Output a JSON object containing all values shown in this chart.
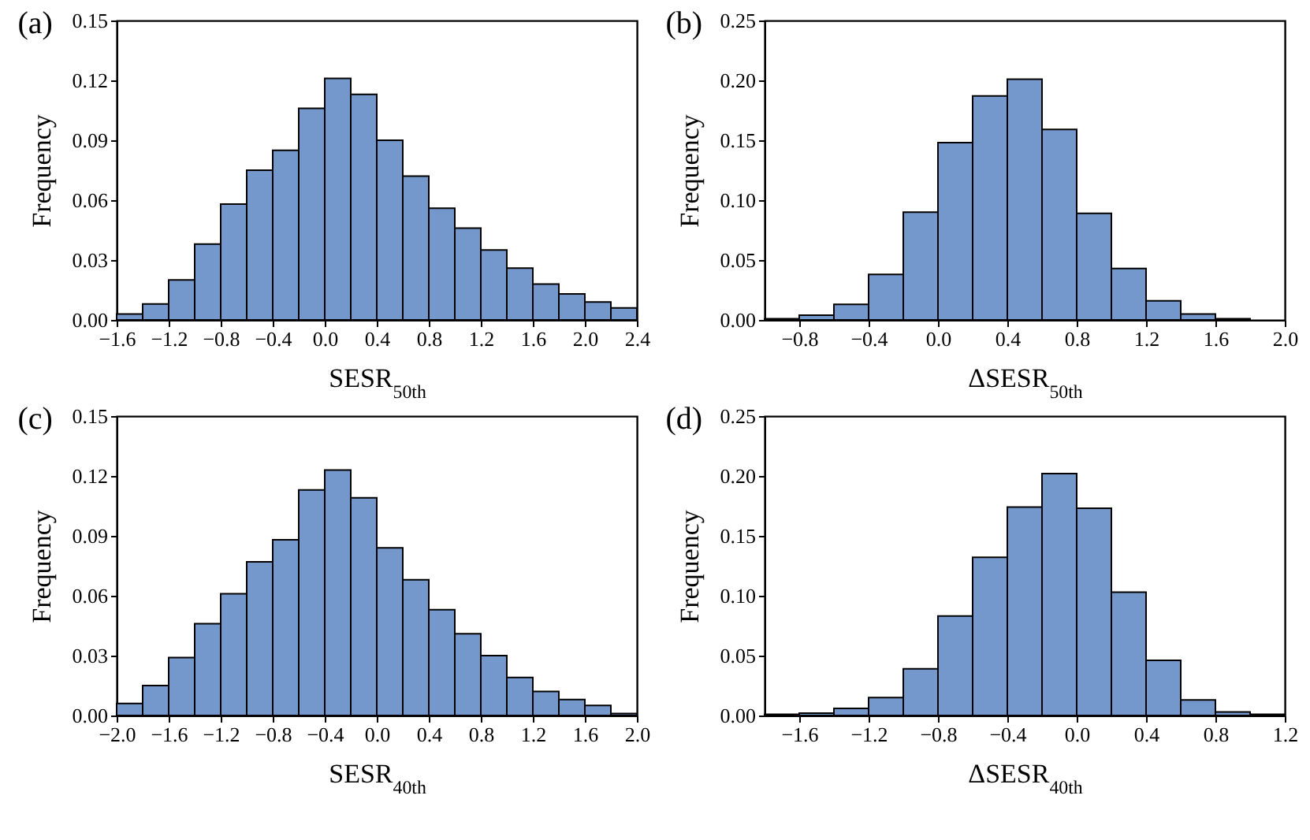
{
  "chart_data": [
    {
      "type": "histogram",
      "title": "(a)",
      "xlabel": "SESR$_{50th}$",
      "ylabel": "Frequency",
      "color": "#7498cb",
      "bins": [
        -1.6,
        -1.4,
        -1.2,
        -1.0,
        -0.8,
        -0.6,
        -0.4,
        -0.2,
        0.0,
        0.2,
        0.4,
        0.6,
        0.8,
        1.0,
        1.2,
        1.4,
        1.6,
        1.8,
        2.0,
        2.2,
        2.4
      ],
      "values": [
        0.003,
        0.008,
        0.02,
        0.038,
        0.058,
        0.075,
        0.085,
        0.106,
        0.121,
        0.113,
        0.09,
        0.072,
        0.056,
        0.046,
        0.035,
        0.026,
        0.018,
        0.013,
        0.009,
        0.006
      ],
      "xlim": [
        -1.6,
        2.4
      ],
      "xticks": [
        -1.6,
        -1.2,
        -0.8,
        -0.4,
        {
          "value": 0,
          "label": "0.0"
        },
        0.4,
        0.8,
        1.2,
        1.6,
        {
          "value": 2,
          "label": "2.0"
        },
        2.4
      ],
      "ylim": [
        0,
        0.15
      ],
      "yticks": [
        {
          "value": 0,
          "label": "0.00"
        },
        0.03,
        0.06,
        0.09,
        0.12,
        0.15
      ]
    },
    {
      "type": "histogram",
      "title": "(b)",
      "xlabel": "ΔSESR$_{50th}$",
      "ylabel": "Frequency",
      "color": "#7498cb",
      "bins": [
        -1.0,
        -0.8,
        -0.6,
        -0.4,
        -0.2,
        0.0,
        0.2,
        0.4,
        0.6,
        0.8,
        1.0,
        1.2,
        1.4,
        1.6,
        1.8
      ],
      "values": [
        0.001,
        0.004,
        0.013,
        0.038,
        0.09,
        0.148,
        0.187,
        0.201,
        0.159,
        0.089,
        0.043,
        0.016,
        0.005,
        0.001
      ],
      "xlim": [
        -1.0,
        2.0
      ],
      "xticks": [
        -0.8,
        -0.4,
        {
          "value": 0,
          "label": "0.0"
        },
        0.4,
        0.8,
        1.2,
        1.6,
        {
          "value": 2,
          "label": "2.0"
        }
      ],
      "ylim": [
        0,
        0.25
      ],
      "yticks": [
        {
          "value": 0,
          "label": "0.00"
        },
        0.05,
        {
          "value": 0.1,
          "label": "0.10"
        },
        0.15,
        {
          "value": 0.2,
          "label": "0.20"
        },
        0.25
      ]
    },
    {
      "type": "histogram",
      "title": "(c)",
      "xlabel": "SESR$_{40th}$",
      "ylabel": "Frequency",
      "color": "#7498cb",
      "bins": [
        -2.0,
        -1.8,
        -1.6,
        -1.4,
        -1.2,
        -1.0,
        -0.8,
        -0.6,
        -0.4,
        -0.2,
        0.0,
        0.2,
        0.4,
        0.6,
        0.8,
        1.0,
        1.2,
        1.4,
        1.6,
        1.8,
        2.0
      ],
      "values": [
        0.006,
        0.015,
        0.029,
        0.046,
        0.061,
        0.077,
        0.088,
        0.113,
        0.123,
        0.109,
        0.084,
        0.068,
        0.053,
        0.041,
        0.03,
        0.019,
        0.012,
        0.008,
        0.005,
        0.001
      ],
      "xlim": [
        -2.0,
        2.0
      ],
      "xticks": [
        {
          "value": -2,
          "label": "−2.0"
        },
        -1.6,
        -1.2,
        -0.8,
        -0.4,
        {
          "value": 0,
          "label": "0.0"
        },
        0.4,
        0.8,
        1.2,
        1.6,
        {
          "value": 2,
          "label": "2.0"
        }
      ],
      "ylim": [
        0,
        0.15
      ],
      "yticks": [
        {
          "value": 0,
          "label": "0.00"
        },
        0.03,
        0.06,
        0.09,
        0.12,
        0.15
      ]
    },
    {
      "type": "histogram",
      "title": "(d)",
      "xlabel": "ΔSESR$_{40th}$",
      "ylabel": "Frequency",
      "color": "#7498cb",
      "bins": [
        -1.8,
        -1.6,
        -1.4,
        -1.2,
        -1.0,
        -0.8,
        -0.6,
        -0.4,
        -0.2,
        0.0,
        0.2,
        0.4,
        0.6,
        0.8,
        1.0,
        1.2
      ],
      "values": [
        0.001,
        0.002,
        0.006,
        0.015,
        0.039,
        0.083,
        0.132,
        0.174,
        0.202,
        0.173,
        0.103,
        0.046,
        0.013,
        0.003,
        0.001
      ],
      "xlim": [
        -1.8,
        1.2
      ],
      "xticks": [
        -1.6,
        -1.2,
        -0.8,
        -0.4,
        {
          "value": 0,
          "label": "0.0"
        },
        0.4,
        0.8,
        {
          "value": 1.2,
          "label": "1.2"
        }
      ],
      "ylim": [
        0,
        0.25
      ],
      "yticks": [
        {
          "value": 0,
          "label": "0.00"
        },
        0.05,
        {
          "value": 0.1,
          "label": "0.10"
        },
        0.15,
        {
          "value": 0.2,
          "label": "0.20"
        },
        0.25
      ]
    }
  ]
}
